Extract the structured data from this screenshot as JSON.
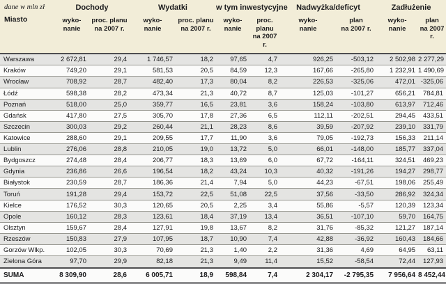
{
  "colors": {
    "header_bg": "#f2edd8",
    "stripe_bg": "#e4e4e2",
    "row_bg": "#fbfbfa",
    "border": "#96968f",
    "strong_border": "#4e4e50",
    "bottom_border": "#8b8b8d",
    "text": "#1b1b1d"
  },
  "chart_data": {
    "type": "table",
    "unit_note": "dane w mln zł",
    "city_header": "Miasto",
    "groups": [
      {
        "label": "Dochody",
        "cols": [
          "wyko-\nnanie",
          "proc. planu\nna 2007 r."
        ]
      },
      {
        "label": "Wydatki",
        "cols": [
          "wyko-\nnanie",
          "proc. planu\nna 2007 r."
        ]
      },
      {
        "label": "w tym inwestycyjne",
        "cols": [
          "wyko-\nnanie",
          "proc. planu\nna 2007 r."
        ]
      },
      {
        "label": "Nadwyżka/deficyt",
        "cols": [
          "wyko-\nnanie",
          "plan\nna 2007 r."
        ]
      },
      {
        "label": "Zadłużenie",
        "cols": [
          "wyko-\nnanie",
          "plan\nna 2007 r."
        ]
      }
    ],
    "rows": [
      [
        "Warszawa",
        "2 672,81",
        "29,4",
        "1 746,57",
        "18,2",
        "97,65",
        "4,7",
        "926,25",
        "-503,12",
        "2 502,98",
        "2 277,29"
      ],
      [
        "Kraków",
        "749,20",
        "29,1",
        "581,53",
        "20,5",
        "84,59",
        "12,3",
        "167,66",
        "-265,80",
        "1 232,91",
        "1 490,69"
      ],
      [
        "Wrocław",
        "708,92",
        "28,7",
        "482,40",
        "17,3",
        "80,04",
        "8,2",
        "226,53",
        "-325,06",
        "472,01",
        "-325,06"
      ],
      [
        "Łódź",
        "598,38",
        "28,2",
        "473,34",
        "21,3",
        "40,72",
        "8,7",
        "125,03",
        "-101,27",
        "656,21",
        "784,81"
      ],
      [
        "Poznań",
        "518,00",
        "25,0",
        "359,77",
        "16,5",
        "23,81",
        "3,6",
        "158,24",
        "-103,80",
        "613,97",
        "712,46"
      ],
      [
        "Gdańsk",
        "417,80",
        "27,5",
        "305,70",
        "17,8",
        "27,36",
        "6,5",
        "112,11",
        "-202,51",
        "294,45",
        "433,51"
      ],
      [
        "Szczecin",
        "300,03",
        "29,2",
        "260,44",
        "21,1",
        "28,23",
        "8,6",
        "39,59",
        "-207,92",
        "239,10",
        "331,79"
      ],
      [
        "Katowice",
        "288,60",
        "29,1",
        "209,55",
        "17,7",
        "11,90",
        "3,6",
        "79,05",
        "-192,73",
        "156,33",
        "211,14"
      ],
      [
        "Lublin",
        "276,06",
        "28,8",
        "210,05",
        "19,0",
        "13,72",
        "5,0",
        "66,01",
        "-148,00",
        "185,77",
        "337,04"
      ],
      [
        "Bydgoszcz",
        "274,48",
        "28,4",
        "206,77",
        "18,3",
        "13,69",
        "6,0",
        "67,72",
        "-164,11",
        "324,51",
        "469,23"
      ],
      [
        "Gdynia",
        "236,86",
        "26,6",
        "196,54",
        "18,2",
        "43,24",
        "10,3",
        "40,32",
        "-191,26",
        "194,27",
        "298,77"
      ],
      [
        "Białystok",
        "230,59",
        "28,7",
        "186,36",
        "21,4",
        "7,94",
        "5,0",
        "44,23",
        "-67,51",
        "198,06",
        "255,49"
      ],
      [
        "Toruń",
        "191,28",
        "29,4",
        "153,72",
        "22,5",
        "51,08",
        "22,5",
        "37,56",
        "-33,50",
        "286,92",
        "324,34"
      ],
      [
        "Kielce",
        "176,52",
        "30,3",
        "120,65",
        "20,5",
        "2,25",
        "3,4",
        "55,86",
        "-5,57",
        "120,39",
        "123,34"
      ],
      [
        "Opole",
        "160,12",
        "28,3",
        "123,61",
        "18,4",
        "37,19",
        "13,4",
        "36,51",
        "-107,10",
        "59,70",
        "164,75"
      ],
      [
        "Olsztyn",
        "159,67",
        "28,4",
        "127,91",
        "19,8",
        "13,67",
        "8,2",
        "31,76",
        "-85,32",
        "121,27",
        "187,14"
      ],
      [
        "Rzeszów",
        "150,83",
        "27,9",
        "107,95",
        "18,7",
        "10,90",
        "7,4",
        "42,88",
        "-36,92",
        "160,43",
        "184,66"
      ],
      [
        "Gorzów Wlkp.",
        "102,05",
        "30,3",
        "70,69",
        "21,3",
        "1,40",
        "2,2",
        "31,36",
        "4,69",
        "64,95",
        "63,11"
      ],
      [
        "Zielona Góra",
        "97,70",
        "29,9",
        "82,18",
        "21,3",
        "9,49",
        "11,4",
        "15,52",
        "-58,54",
        "72,44",
        "127,93"
      ]
    ],
    "total_row": [
      "SUMA",
      "8 309,90",
      "28,6",
      "6 005,71",
      "18,9",
      "598,84",
      "7,4",
      "2 304,17",
      "-2 795,35",
      "7 956,64",
      "8 452,44"
    ]
  }
}
